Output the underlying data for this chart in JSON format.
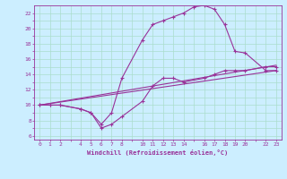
{
  "bg_color": "#cceeff",
  "line_color": "#993399",
  "grid_color": "#aaddcc",
  "xlabel": "Windchill (Refroidissement éolien,°C)",
  "xlim": [
    -0.5,
    23.5
  ],
  "ylim": [
    5.5,
    23.0
  ],
  "xticks_minor": [
    0,
    1,
    2,
    3,
    4,
    5,
    6,
    7,
    8,
    9,
    10,
    11,
    12,
    13,
    14,
    15,
    16,
    17,
    18,
    19,
    20,
    21,
    22,
    23
  ],
  "xticks_label": [
    0,
    1,
    2,
    4,
    5,
    6,
    7,
    8,
    10,
    11,
    12,
    13,
    14,
    16,
    17,
    18,
    19,
    20,
    22,
    23
  ],
  "yticks_minor": [
    6,
    7,
    8,
    9,
    10,
    11,
    12,
    13,
    14,
    15,
    16,
    17,
    18,
    19,
    20,
    21,
    22
  ],
  "yticks_label": [
    6,
    8,
    10,
    12,
    14,
    16,
    18,
    20,
    22
  ],
  "line1_x": [
    0,
    1,
    2,
    4,
    5,
    6,
    7,
    8,
    10,
    11,
    12,
    13,
    14,
    16,
    17,
    18,
    19,
    20,
    22,
    23
  ],
  "line1_y": [
    10,
    10,
    10,
    9.5,
    9.0,
    7.0,
    7.5,
    8.5,
    10.5,
    12.5,
    13.5,
    13.5,
    13.0,
    13.5,
    14.0,
    14.5,
    14.5,
    14.5,
    15.0,
    15.0
  ],
  "line2_x": [
    0,
    1,
    2,
    4,
    5,
    6,
    7,
    8,
    10,
    11,
    12,
    13,
    14,
    15,
    16,
    17,
    18,
    19,
    20,
    22,
    23
  ],
  "line2_y": [
    10,
    10,
    10,
    9.5,
    9.0,
    7.5,
    9.0,
    13.5,
    18.5,
    20.5,
    21.0,
    21.5,
    22.0,
    22.8,
    23.0,
    22.5,
    20.5,
    17.0,
    16.8,
    14.5,
    14.5
  ],
  "line3_x": [
    0,
    23
  ],
  "line3_y": [
    10,
    14.5
  ],
  "line4_x": [
    0,
    23
  ],
  "line4_y": [
    10,
    15.2
  ]
}
